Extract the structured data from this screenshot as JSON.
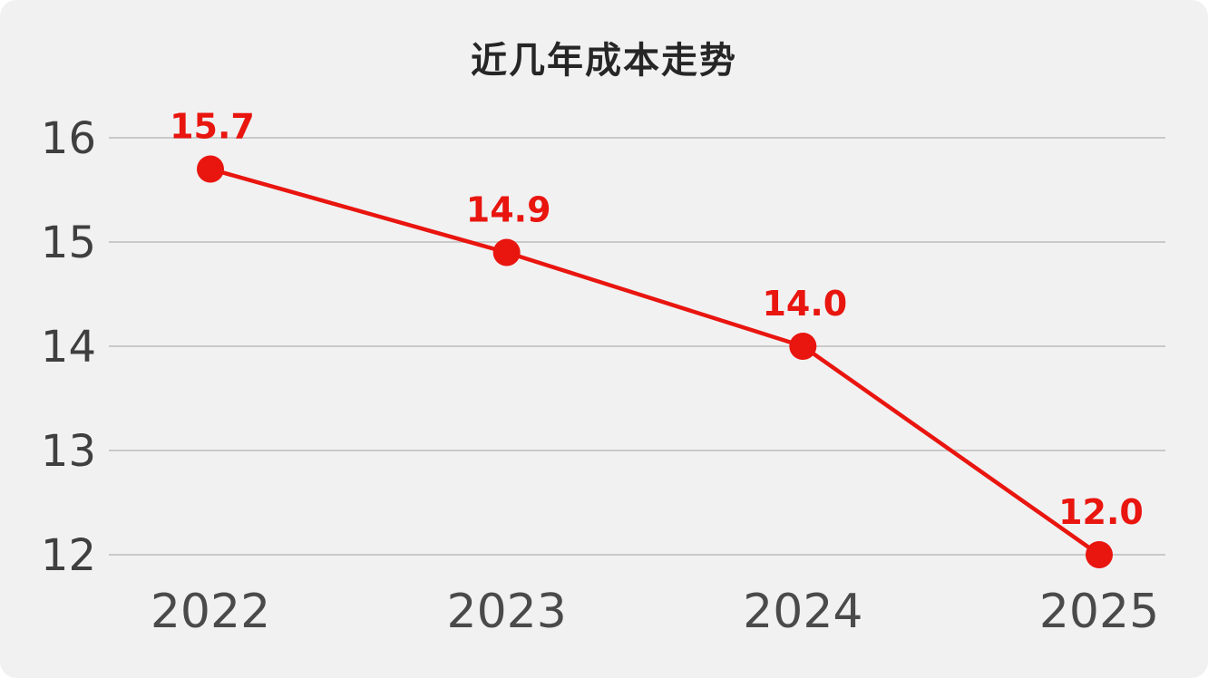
{
  "chart_data": {
    "type": "line",
    "title": "近几年成本走势",
    "categories": [
      "2022",
      "2023",
      "2024",
      "2025"
    ],
    "values": [
      15.7,
      14.9,
      14.0,
      12.0
    ],
    "value_labels": [
      "15.7",
      "14.9",
      "14.0",
      "12.0"
    ],
    "y_ticks": [
      16,
      15,
      14,
      13,
      12
    ],
    "ylim": [
      12,
      16
    ],
    "xlabel": "",
    "ylabel": "",
    "grid": "horizontal-only",
    "legend": "none"
  },
  "colors": {
    "line": "#e9150f",
    "marker": "#e9150f",
    "value_label": "#e9150f",
    "grid_line": "#c9c9c9",
    "y_tick_text": "#3f3f3f",
    "x_tick_text": "#4a4a4a",
    "title_text": "#262626",
    "card_background": "#f1f1f2"
  }
}
